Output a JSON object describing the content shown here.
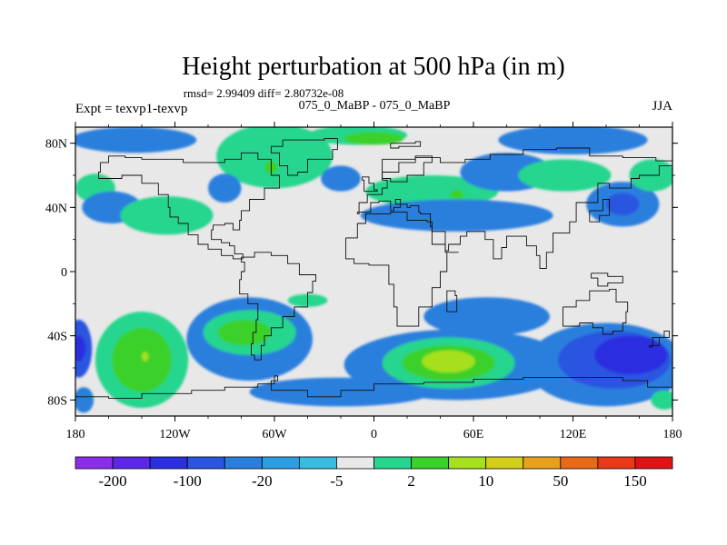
{
  "chart_data": {
    "type": "heatmap",
    "title": "Height perturbation at 500 hPa (in m)",
    "subtitle": "rmsd= 2.99409 diff= 2.80732e-08",
    "left_label": "Expt = texvp1-texvp",
    "center_label": "075_0_MaBP - 075_0_MaBP",
    "right_label": "JJA",
    "xlim": [
      -180,
      180
    ],
    "ylim": [
      -90,
      90
    ],
    "x_ticks": [
      {
        "value": -180,
        "label": "180"
      },
      {
        "value": -120,
        "label": "120W"
      },
      {
        "value": -60,
        "label": "60W"
      },
      {
        "value": 0,
        "label": "0"
      },
      {
        "value": 60,
        "label": "60E"
      },
      {
        "value": 120,
        "label": "120E"
      },
      {
        "value": 180,
        "label": "180"
      }
    ],
    "y_ticks": [
      {
        "value": 80,
        "label": "80N"
      },
      {
        "value": 40,
        "label": "40N"
      },
      {
        "value": 0,
        "label": "0"
      },
      {
        "value": -40,
        "label": "40S"
      },
      {
        "value": -80,
        "label": "80S"
      }
    ],
    "colorbar": {
      "colors": [
        "#8b2ee8",
        "#5a28e6",
        "#2c2fe0",
        "#2a55e0",
        "#2a7fdd",
        "#2d9ee2",
        "#38bcdf",
        "#e8e8e8",
        "#26d58e",
        "#3ad12a",
        "#a6e01e",
        "#d4cf1c",
        "#e8a11a",
        "#e86a18",
        "#e83a16",
        "#e01414"
      ],
      "labels": [
        "-200",
        "-100",
        "-20",
        "-5",
        "2",
        "10",
        "50",
        "150"
      ]
    },
    "regions": [
      {
        "lon": -178,
        "lat": -48,
        "rx": 8,
        "ry": 18,
        "level": -4
      },
      {
        "lon": -178,
        "lat": -48,
        "rx": 4,
        "ry": 8,
        "level": -5
      },
      {
        "lon": -175,
        "lat": -80,
        "rx": 6,
        "ry": 8,
        "level": -3
      },
      {
        "lon": -140,
        "lat": -55,
        "rx": 28,
        "ry": 30,
        "level": 1
      },
      {
        "lon": -140,
        "lat": -55,
        "rx": 18,
        "ry": 20,
        "level": 2
      },
      {
        "lon": -138,
        "lat": -53,
        "rx": 2,
        "ry": 3,
        "level": 3
      },
      {
        "lon": -75,
        "lat": -42,
        "rx": 38,
        "ry": 26,
        "level": -3
      },
      {
        "lon": -75,
        "lat": -38,
        "rx": 28,
        "ry": 14,
        "level": 1
      },
      {
        "lon": -78,
        "lat": -38,
        "rx": 16,
        "ry": 8,
        "level": 2
      },
      {
        "lon": -20,
        "lat": -75,
        "rx": 55,
        "ry": 9,
        "level": -3
      },
      {
        "lon": -40,
        "lat": -18,
        "rx": 12,
        "ry": 4,
        "level": 1
      },
      {
        "lon": 50,
        "lat": -58,
        "rx": 68,
        "ry": 22,
        "level": -3
      },
      {
        "lon": 45,
        "lat": -57,
        "rx": 40,
        "ry": 16,
        "level": 1
      },
      {
        "lon": 45,
        "lat": -57,
        "rx": 28,
        "ry": 11,
        "level": 2
      },
      {
        "lon": 45,
        "lat": -56,
        "rx": 16,
        "ry": 7,
        "level": 3
      },
      {
        "lon": 68,
        "lat": -28,
        "rx": 38,
        "ry": 12,
        "level": -3
      },
      {
        "lon": 140,
        "lat": -58,
        "rx": 48,
        "ry": 26,
        "level": -3
      },
      {
        "lon": 145,
        "lat": -55,
        "rx": 34,
        "ry": 18,
        "level": -4
      },
      {
        "lon": 155,
        "lat": -52,
        "rx": 22,
        "ry": 12,
        "level": -5
      },
      {
        "lon": 175,
        "lat": -80,
        "rx": 8,
        "ry": 6,
        "level": 1
      },
      {
        "lon": -145,
        "lat": 82,
        "rx": 38,
        "ry": 8,
        "level": -3
      },
      {
        "lon": -168,
        "lat": 52,
        "rx": 12,
        "ry": 9,
        "level": 1
      },
      {
        "lon": -158,
        "lat": 40,
        "rx": 18,
        "ry": 10,
        "level": -3
      },
      {
        "lon": -125,
        "lat": 35,
        "rx": 28,
        "ry": 12,
        "level": 1
      },
      {
        "lon": -60,
        "lat": 72,
        "rx": 35,
        "ry": 20,
        "level": 1
      },
      {
        "lon": -62,
        "lat": 65,
        "rx": 4,
        "ry": 4,
        "level": 2
      },
      {
        "lon": -90,
        "lat": 52,
        "rx": 10,
        "ry": 9,
        "level": -3
      },
      {
        "lon": -20,
        "lat": 58,
        "rx": 12,
        "ry": 8,
        "level": -3
      },
      {
        "lon": -10,
        "lat": 85,
        "rx": 30,
        "ry": 6,
        "level": 1
      },
      {
        "lon": 0,
        "lat": 83,
        "rx": 18,
        "ry": 4,
        "level": 2
      },
      {
        "lon": 35,
        "lat": 50,
        "rx": 40,
        "ry": 10,
        "level": 1
      },
      {
        "lon": 50,
        "lat": 48,
        "rx": 4,
        "ry": 3,
        "level": 2
      },
      {
        "lon": 50,
        "lat": 35,
        "rx": 58,
        "ry": 10,
        "level": -3
      },
      {
        "lon": 80,
        "lat": 62,
        "rx": 28,
        "ry": 12,
        "level": -3
      },
      {
        "lon": 120,
        "lat": 82,
        "rx": 45,
        "ry": 9,
        "level": -3
      },
      {
        "lon": 115,
        "lat": 60,
        "rx": 28,
        "ry": 10,
        "level": 1
      },
      {
        "lon": 150,
        "lat": 42,
        "rx": 22,
        "ry": 14,
        "level": -3
      },
      {
        "lon": 150,
        "lat": 42,
        "rx": 10,
        "ry": 7,
        "level": -4
      },
      {
        "lon": 168,
        "lat": 60,
        "rx": 14,
        "ry": 10,
        "level": 1
      }
    ],
    "coastlines": [
      {
        "name": "north-america",
        "points": [
          [
            -165,
            68
          ],
          [
            -160,
            72
          ],
          [
            -150,
            71
          ],
          [
            -140,
            70
          ],
          [
            -128,
            70
          ],
          [
            -115,
            68
          ],
          [
            -100,
            68
          ],
          [
            -90,
            70
          ],
          [
            -80,
            74
          ],
          [
            -70,
            70
          ],
          [
            -62,
            60
          ],
          [
            -57,
            52
          ],
          [
            -66,
            45
          ],
          [
            -75,
            38
          ],
          [
            -80,
            32
          ],
          [
            -81,
            26
          ],
          [
            -85,
            30
          ],
          [
            -90,
            29
          ],
          [
            -97,
            26
          ],
          [
            -98,
            20
          ],
          [
            -92,
            18
          ],
          [
            -87,
            16
          ],
          [
            -84,
            11
          ],
          [
            -79,
            8
          ],
          [
            -85,
            10
          ],
          [
            -92,
            14
          ],
          [
            -100,
            17
          ],
          [
            -106,
            23
          ],
          [
            -112,
            30
          ],
          [
            -118,
            34
          ],
          [
            -123,
            40
          ],
          [
            -124,
            48
          ],
          [
            -130,
            55
          ],
          [
            -140,
            60
          ],
          [
            -152,
            58
          ],
          [
            -160,
            58
          ],
          [
            -166,
            62
          ],
          [
            -165,
            68
          ]
        ]
      },
      {
        "name": "greenland",
        "points": [
          [
            -55,
            82
          ],
          [
            -30,
            83
          ],
          [
            -22,
            76
          ],
          [
            -25,
            70
          ],
          [
            -40,
            62
          ],
          [
            -46,
            60
          ],
          [
            -52,
            66
          ],
          [
            -57,
            74
          ],
          [
            -62,
            78
          ],
          [
            -55,
            82
          ]
        ]
      },
      {
        "name": "south-america",
        "points": [
          [
            -80,
            9
          ],
          [
            -72,
            12
          ],
          [
            -62,
            10
          ],
          [
            -52,
            5
          ],
          [
            -45,
            -2
          ],
          [
            -35,
            -6
          ],
          [
            -37,
            -13
          ],
          [
            -40,
            -22
          ],
          [
            -48,
            -28
          ],
          [
            -55,
            -35
          ],
          [
            -62,
            -40
          ],
          [
            -66,
            -46
          ],
          [
            -68,
            -55
          ],
          [
            -72,
            -52
          ],
          [
            -74,
            -45
          ],
          [
            -73,
            -38
          ],
          [
            -71,
            -30
          ],
          [
            -70,
            -20
          ],
          [
            -76,
            -14
          ],
          [
            -81,
            -5
          ],
          [
            -80,
            0
          ],
          [
            -78,
            6
          ],
          [
            -80,
            9
          ]
        ]
      },
      {
        "name": "africa",
        "points": [
          [
            -17,
            21
          ],
          [
            -10,
            30
          ],
          [
            -5,
            36
          ],
          [
            10,
            37
          ],
          [
            20,
            32
          ],
          [
            32,
            31
          ],
          [
            35,
            25
          ],
          [
            43,
            12
          ],
          [
            51,
            12
          ],
          [
            44,
            0
          ],
          [
            40,
            -10
          ],
          [
            35,
            -22
          ],
          [
            27,
            -34
          ],
          [
            18,
            -34
          ],
          [
            14,
            -22
          ],
          [
            12,
            -8
          ],
          [
            9,
            4
          ],
          [
            -3,
            5
          ],
          [
            -12,
            8
          ],
          [
            -17,
            14
          ],
          [
            -17,
            21
          ]
        ]
      },
      {
        "name": "europe-asia",
        "points": [
          [
            -10,
            36
          ],
          [
            -9,
            43
          ],
          [
            -4,
            48
          ],
          [
            5,
            52
          ],
          [
            8,
            57
          ],
          [
            5,
            62
          ],
          [
            15,
            68
          ],
          [
            25,
            71
          ],
          [
            40,
            68
          ],
          [
            55,
            70
          ],
          [
            70,
            73
          ],
          [
            90,
            76
          ],
          [
            110,
            77
          ],
          [
            130,
            72
          ],
          [
            150,
            71
          ],
          [
            170,
            69
          ],
          [
            180,
            66
          ],
          [
            172,
            60
          ],
          [
            160,
            58
          ],
          [
            155,
            52
          ],
          [
            142,
            55
          ],
          [
            135,
            43
          ],
          [
            122,
            40
          ],
          [
            122,
            31
          ],
          [
            118,
            24
          ],
          [
            108,
            20
          ],
          [
            108,
            12
          ],
          [
            104,
            2
          ],
          [
            100,
            10
          ],
          [
            98,
            16
          ],
          [
            92,
            22
          ],
          [
            88,
            22
          ],
          [
            80,
            15
          ],
          [
            77,
            8
          ],
          [
            72,
            20
          ],
          [
            67,
            25
          ],
          [
            57,
            25
          ],
          [
            56,
            22
          ],
          [
            52,
            17
          ],
          [
            45,
            13
          ],
          [
            43,
            17
          ],
          [
            35,
            28
          ],
          [
            34,
            36
          ],
          [
            28,
            37
          ],
          [
            27,
            41
          ],
          [
            22,
            40
          ],
          [
            20,
            42
          ],
          [
            13,
            45
          ],
          [
            16,
            40
          ],
          [
            12,
            38
          ],
          [
            10,
            44
          ],
          [
            3,
            43
          ],
          [
            -2,
            37
          ],
          [
            -10,
            36
          ]
        ]
      },
      {
        "name": "scandinavia-arctic",
        "points": [
          [
            5,
            70
          ],
          [
            25,
            72
          ],
          [
            35,
            68
          ],
          [
            30,
            60
          ],
          [
            20,
            56
          ],
          [
            10,
            58
          ],
          [
            5,
            62
          ],
          [
            5,
            70
          ]
        ]
      },
      {
        "name": "svalbard",
        "points": [
          [
            10,
            80
          ],
          [
            25,
            81
          ],
          [
            28,
            78
          ],
          [
            15,
            77
          ],
          [
            10,
            80
          ]
        ]
      },
      {
        "name": "uk",
        "points": [
          [
            -6,
            50
          ],
          [
            2,
            51
          ],
          [
            0,
            55
          ],
          [
            -3,
            59
          ],
          [
            -7,
            57
          ],
          [
            -6,
            50
          ]
        ]
      },
      {
        "name": "madagascar",
        "points": [
          [
            44,
            -25
          ],
          [
            50,
            -15
          ],
          [
            49,
            -12
          ],
          [
            44,
            -16
          ],
          [
            44,
            -25
          ]
        ]
      },
      {
        "name": "japan",
        "points": [
          [
            130,
            31
          ],
          [
            136,
            35
          ],
          [
            142,
            40
          ],
          [
            142,
            45
          ],
          [
            138,
            38
          ],
          [
            130,
            33
          ],
          [
            130,
            31
          ]
        ]
      },
      {
        "name": "australia",
        "points": [
          [
            114,
            -22
          ],
          [
            122,
            -18
          ],
          [
            130,
            -12
          ],
          [
            137,
            -12
          ],
          [
            142,
            -11
          ],
          [
            146,
            -19
          ],
          [
            153,
            -25
          ],
          [
            152,
            -32
          ],
          [
            150,
            -37
          ],
          [
            144,
            -39
          ],
          [
            138,
            -35
          ],
          [
            132,
            -32
          ],
          [
            124,
            -34
          ],
          [
            115,
            -34
          ],
          [
            114,
            -22
          ]
        ]
      },
      {
        "name": "new-guinea",
        "points": [
          [
            131,
            -1
          ],
          [
            141,
            -3
          ],
          [
            150,
            -7
          ],
          [
            141,
            -9
          ],
          [
            135,
            -4
          ],
          [
            131,
            -1
          ]
        ]
      },
      {
        "name": "new-zealand",
        "points": [
          [
            166,
            -46
          ],
          [
            172,
            -41
          ],
          [
            178,
            -37
          ],
          [
            175,
            -41
          ],
          [
            168,
            -47
          ],
          [
            166,
            -46
          ]
        ]
      },
      {
        "name": "antarctica",
        "points": [
          [
            -180,
            -78
          ],
          [
            -160,
            -79
          ],
          [
            -140,
            -76
          ],
          [
            -110,
            -74
          ],
          [
            -90,
            -72
          ],
          [
            -70,
            -70
          ],
          [
            -60,
            -65
          ],
          [
            -58,
            -68
          ],
          [
            -62,
            -74
          ],
          [
            -40,
            -78
          ],
          [
            -20,
            -74
          ],
          [
            0,
            -70
          ],
          [
            30,
            -69
          ],
          [
            60,
            -67
          ],
          [
            90,
            -66
          ],
          [
            120,
            -66
          ],
          [
            150,
            -68
          ],
          [
            165,
            -72
          ],
          [
            180,
            -78
          ]
        ]
      }
    ]
  }
}
